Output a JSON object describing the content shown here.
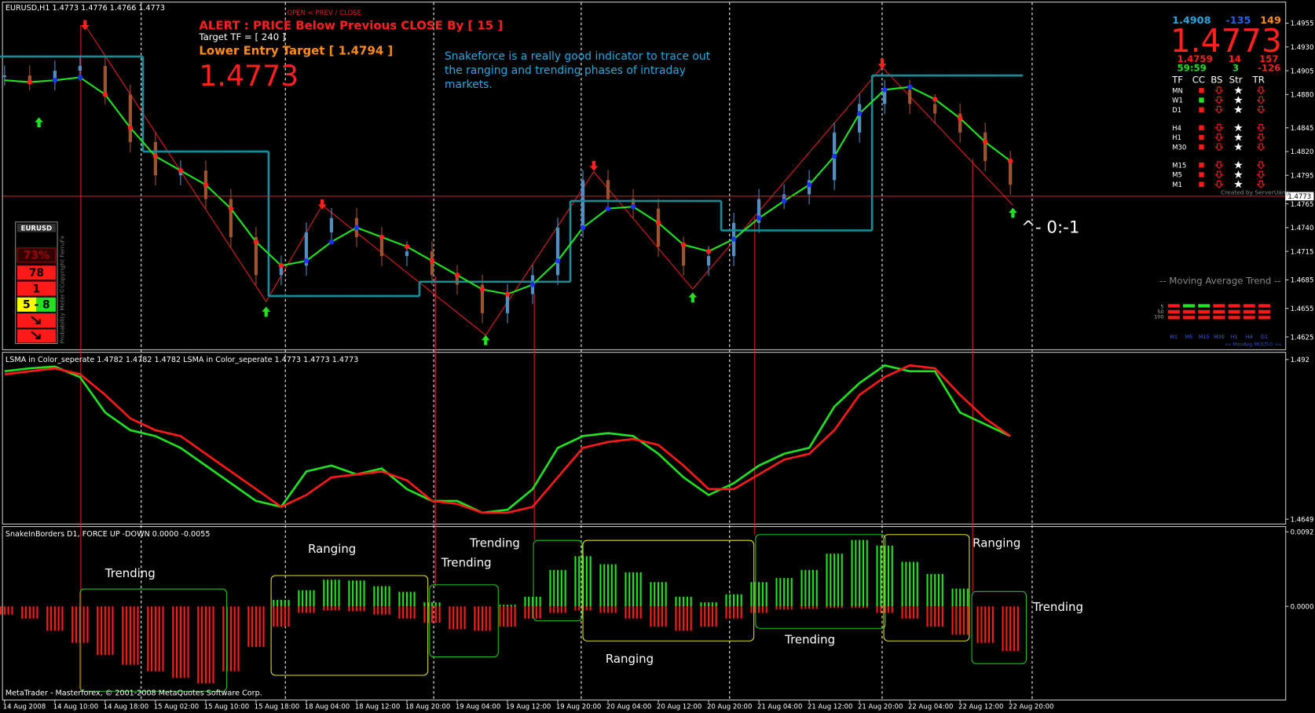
{
  "chart_data": [
    {
      "type": "candlestick",
      "title": "EURUSD,H1  1.4773 1.4776 1.4766 1.4773",
      "categories": [
        "14 Aug 2008",
        null,
        "14 Aug 10:00",
        null,
        "14 Aug 18:00",
        null,
        "15 Aug 02:00",
        null,
        "15 Aug 10:00",
        null,
        "15 Aug 18:00",
        null,
        "18 Aug 04:00",
        null,
        "18 Aug 12:00",
        null,
        "18 Aug 20:00",
        null,
        "19 Aug 04:00",
        null,
        "19 Aug 12:00",
        null,
        "19 Aug 20:00",
        null,
        "20 Aug 04:00",
        null,
        "20 Aug 12:00",
        null,
        "20 Aug 20:00",
        null,
        "21 Aug 04:00",
        null,
        "21 Aug 12:00",
        null,
        "21 Aug 20:00",
        null,
        "22 Aug 04:00",
        null,
        "22 Aug 12:00",
        null,
        "22 Aug 20:00"
      ],
      "values": [
        1.49,
        1.4895,
        1.4905,
        1.491,
        1.488,
        1.483,
        1.4795,
        1.48,
        1.477,
        1.473,
        1.469,
        1.47,
        1.4735,
        1.475,
        1.473,
        1.471,
        1.4715,
        1.469,
        1.468,
        1.465,
        1.467,
        1.469,
        1.474,
        1.479,
        1.477,
        1.476,
        1.472,
        1.47,
        1.471,
        1.4745,
        1.477,
        1.4775,
        1.479,
        1.484,
        1.487,
        1.4885,
        1.487,
        1.486,
        1.484,
        1.481,
        1.4785
      ],
      "ma_values": [
        1.4895,
        1.4893,
        1.4895,
        1.4898,
        1.488,
        1.4845,
        1.4815,
        1.48,
        1.4785,
        1.476,
        1.4725,
        1.47,
        1.4705,
        1.4725,
        1.474,
        1.473,
        1.472,
        1.4705,
        1.469,
        1.4675,
        1.467,
        1.468,
        1.4705,
        1.474,
        1.476,
        1.4762,
        1.4745,
        1.4722,
        1.4715,
        1.4728,
        1.475,
        1.4768,
        1.4785,
        1.4815,
        1.486,
        1.4885,
        1.4888,
        1.4875,
        1.4855,
        1.483,
        1.481
      ],
      "snake_values": [
        1.492,
        1.492,
        1.492,
        1.492,
        1.492,
        1.492,
        1.482,
        1.482,
        1.482,
        1.482,
        1.482,
        1.4668,
        1.4668,
        1.4668,
        1.4668,
        1.4668,
        1.4668,
        1.4683,
        1.4683,
        1.4683,
        1.4683,
        1.4683,
        1.4683,
        1.4768,
        1.4768,
        1.4768,
        1.4768,
        1.4768,
        1.4768,
        1.4737,
        1.4737,
        1.4737,
        1.4737,
        1.4737,
        1.4737,
        1.49,
        1.49,
        1.49,
        1.49,
        1.49,
        1.49
      ],
      "bid": 1.4773,
      "ylim": [
        1.4611,
        1.4975
      ],
      "yticks": [
        1.4955,
        {
          "value": 1.493,
          "label": "1.4930"
        },
        1.4905,
        {
          "value": 1.488,
          "label": "1.4880"
        },
        1.4845,
        {
          "value": 1.482,
          "label": "1.4820"
        },
        1.4795,
        1.4765,
        {
          "value": 1.474,
          "label": "1.4740"
        },
        1.4715,
        1.4685,
        1.4655,
        1.4625
      ],
      "colors": {
        "up": "#4f8fc6",
        "down": "#a0522d",
        "ma": "#22e022",
        "ma_up_dot": "#2030ff",
        "ma_down_dot": "#ff2020",
        "snake": "#1a8a96",
        "bid": "#e02020"
      }
    },
    {
      "type": "line",
      "title": "LSMA in Color_seperate 1.4782 1.4782 1.4782  LSMA in Color_seperate 1.4773 1.4773 1.4773",
      "series": [
        {
          "color": "#22e022",
          "values": [
            1.49,
            1.4905,
            1.4908,
            1.489,
            1.483,
            1.48,
            1.479,
            1.477,
            1.474,
            1.471,
            1.468,
            1.467,
            1.473,
            1.474,
            1.4725,
            1.4735,
            1.47,
            1.468,
            1.468,
            1.466,
            1.4665,
            1.47,
            1.477,
            1.479,
            1.4795,
            1.479,
            1.476,
            1.472,
            1.469,
            1.471,
            1.474,
            1.476,
            1.477,
            1.484,
            1.488,
            1.491,
            1.49,
            1.49,
            1.483,
            1.481,
            1.479
          ]
        },
        {
          "color": "#ff1a1a",
          "values": [
            1.4895,
            1.49,
            1.4905,
            1.4895,
            1.486,
            1.482,
            1.48,
            1.479,
            1.476,
            1.473,
            1.47,
            1.467,
            1.469,
            1.472,
            1.4725,
            1.473,
            1.4715,
            1.468,
            1.4675,
            1.466,
            1.466,
            1.467,
            1.472,
            1.477,
            1.478,
            1.4785,
            1.4775,
            1.474,
            1.47,
            1.47,
            1.4725,
            1.475,
            1.476,
            1.48,
            1.486,
            1.489,
            1.491,
            1.4905,
            1.486,
            1.482,
            1.479
          ]
        }
      ],
      "ylim": [
        1.464,
        1.493
      ],
      "yticks": [
        1.492,
        1.4649
      ]
    },
    {
      "type": "bar",
      "title": "SnakeInBorders D1, FORCE UP -DOWN  0.0000 -0.0055",
      "series": [
        {
          "color": "#22e022",
          "values": [
            0,
            0,
            0,
            0,
            0,
            0,
            0,
            0,
            0,
            0,
            0,
            0.0008,
            0.002,
            0.0033,
            0.0032,
            0.0025,
            0.0018,
            0.0005,
            0,
            0,
            0.0002,
            0.0012,
            0.0045,
            0.0062,
            0.0052,
            0.0042,
            0.003,
            0.0012,
            0.0005,
            0.0015,
            0.003,
            0.0035,
            0.0045,
            0.0065,
            0.0082,
            0.0075,
            0.0055,
            0.004,
            0.0022,
            0,
            0
          ]
        },
        {
          "color": "#ff1a1a",
          "values": [
            -0.001,
            -0.0015,
            -0.003,
            -0.0045,
            -0.006,
            -0.0072,
            -0.008,
            -0.0088,
            -0.0095,
            -0.008,
            -0.005,
            -0.0025,
            -0.0008,
            -0.0005,
            -0.0006,
            -0.001,
            -0.0015,
            -0.002,
            -0.0028,
            -0.003,
            -0.0025,
            -0.0015,
            -0.0008,
            -0.0005,
            -0.0008,
            -0.0015,
            -0.0025,
            -0.003,
            -0.0025,
            -0.0015,
            -0.0008,
            -0.0004,
            -0.0003,
            -0.0002,
            -0.0002,
            -0.0008,
            -0.0015,
            -0.0025,
            -0.0035,
            -0.0045,
            -0.0055
          ]
        }
      ],
      "ylim": [
        -0.0116,
        0.0099
      ],
      "yticks": [
        {
          "value": 0.0092,
          "label": "0.0092"
        },
        {
          "value": 0,
          "label": "0.0000"
        }
      ],
      "annotations": [
        "Trending",
        "Ranging",
        "Trending",
        "Trending",
        "Ranging",
        "Trending",
        "Ranging",
        "Trending"
      ],
      "footer": "MetaTrader - Masterforex, © 2001-2008 MetaQuotes Software Corp."
    }
  ],
  "alerts": {
    "open_prev_close": "OPEN < PREV / CLOSE",
    "alert": "ALERT : PRICE Below Previous CLOSE By [ 15 ]",
    "target_tf": "Target  TF = [ 240 ]",
    "entry": "Lower Entry Target [ 1.4794 ]",
    "price": "1.4773"
  },
  "note": [
    "Snakeforce is a really good indicator to trace out",
    "the ranging and trending phases of intraday",
    "markets."
  ],
  "marker_text": "^- 0:-1",
  "dashboard": {
    "r1": [
      "1.4908",
      "-135",
      "149"
    ],
    "price": "1.4773",
    "r2": [
      "1.4759",
      "14",
      "157"
    ],
    "r3": [
      "59:59",
      "3",
      "-126"
    ],
    "headers": [
      "TF",
      "CC",
      "BS",
      "Str",
      "TR"
    ],
    "tfs": [
      "MN",
      "W1",
      "D1",
      "H4",
      "H1",
      "M30",
      "M15",
      "M5",
      "M1"
    ],
    "credit": "Created by ServerUang"
  },
  "ma_trend": {
    "title": "-- Moving Average Trend --",
    "periods": [
      "5",
      "50",
      "100"
    ],
    "tfs": [
      "M1",
      "M5",
      "M15",
      "M30",
      "H1",
      "H4",
      "D1"
    ],
    "credit": "»» MovAvg MULTI© ««"
  },
  "meter": {
    "symbol": "EURUSD",
    "prob": "73%",
    "a": "78",
    "b": "1",
    "c": "5 - 8",
    "credit": "Probability Meter©Copyright FerruFx"
  }
}
